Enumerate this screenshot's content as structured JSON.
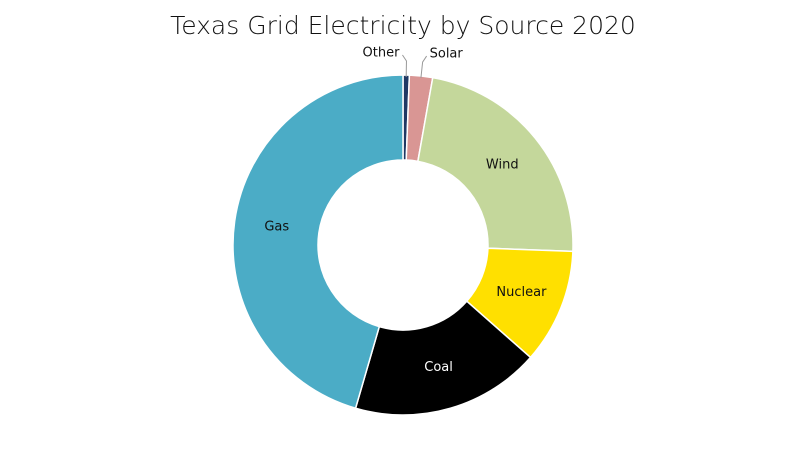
{
  "chart_data": {
    "type": "pie",
    "title": "Texas Grid Electricity by Source 2020",
    "categories": [
      "Other",
      "Solar",
      "Wind",
      "Nuclear",
      "Coal",
      "Gas"
    ],
    "values": [
      0.6,
      2.2,
      22.8,
      10.9,
      18.0,
      45.5
    ],
    "colors": [
      "#1f3864",
      "#d99694",
      "#c4d79b",
      "#ffe000",
      "#000000",
      "#4bacc6"
    ],
    "donut": true
  }
}
